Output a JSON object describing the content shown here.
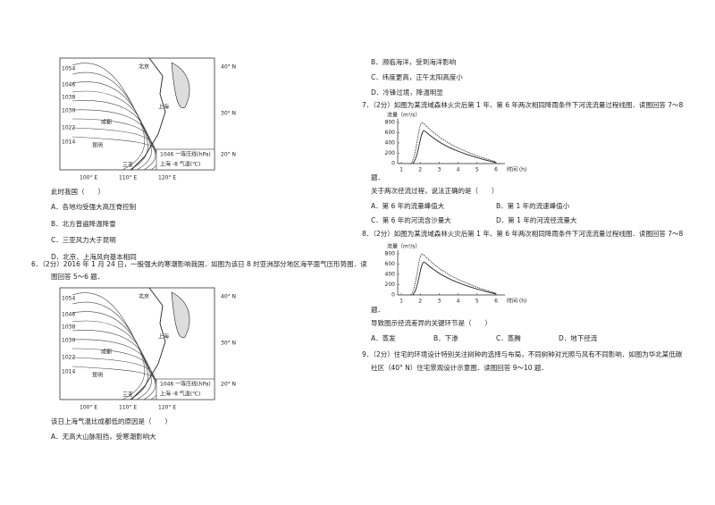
{
  "map": {
    "labels": [
      "1054",
      "1046",
      "1038",
      "1030",
      "1022",
      "1014",
      "北京",
      "成都",
      "昆明",
      "上海",
      "三亚",
      "40° N",
      "30° N",
      "20° N",
      "100° E",
      "110° E",
      "120° E",
      "1046 一等压线(hPa)",
      "上海 -8 气温(℃)"
    ]
  },
  "left": {
    "q5_stem": "此时我国（　　）",
    "q5_options": [
      "A．各地均受强大高压脊控制",
      "B．北方普遍降温降雪",
      "C．三亚风力大于昆明",
      "D．北京、上海风向基本相同"
    ],
    "q6_intro": [
      "6．（2分）2016 年 1 月 24 日，一股强大的寒潮影响我国．如图为该日 8 时亚洲部分地区海平面气压形势图．读",
      "图回答 5～6 题．"
    ],
    "q6_stem": "该日上海气温比成都低的原因是（　　）",
    "q6_options": [
      "A．无高大山脉阻挡，受寒潮影响大"
    ]
  },
  "right": {
    "q6_options": [
      "B．濒临海洋，受到海洋影响",
      "C．纬度更高，正午太阳高度小",
      "D．冷锋过境，降温明显"
    ],
    "q7_intro": [
      "7．（2分）如图为某流域森林火灾后第 1 年、第 6 年两次相同降雨条件下河流流量过程线图．读图回答 7～8",
      "题．"
    ],
    "chart": {
      "y_label": "流量（m³/s）",
      "x_label": "时间 (h)",
      "yticks": [
        800,
        600,
        400,
        200,
        0
      ],
      "xticks": [
        1,
        2,
        3,
        4,
        5,
        6
      ]
    },
    "q7_stem": "关于两次径流过程，说法正确的是（　　）",
    "q7_options": [
      "A．第 6 年的流量峰值大",
      "B．第 1 年的流速峰值小",
      "C．第 6 年的河流含沙量大",
      "D．第 1 年的河流径流量大"
    ],
    "q8_intro": [
      "8．（2分）如图为某流域森林火灾后第 1 年、第 6 年两次相同降雨条件下河流流量过程线图．读图回答 7～8",
      "题．"
    ],
    "q8_stem": "导致图示径流差异的关键环节是（　　）",
    "q8_options": [
      "A．蒸发",
      "B．下渗",
      "C．蒸腾",
      "D．地下径流"
    ],
    "q9_intro": [
      "9．（2分）住宅的环境设计特别关注树种的选择与布局，不同树种对光照与风有不同影响．如图为华北某低碳",
      "社区（40° N）住宅景观设计示意图．读图回答 9～10 题．"
    ]
  }
}
